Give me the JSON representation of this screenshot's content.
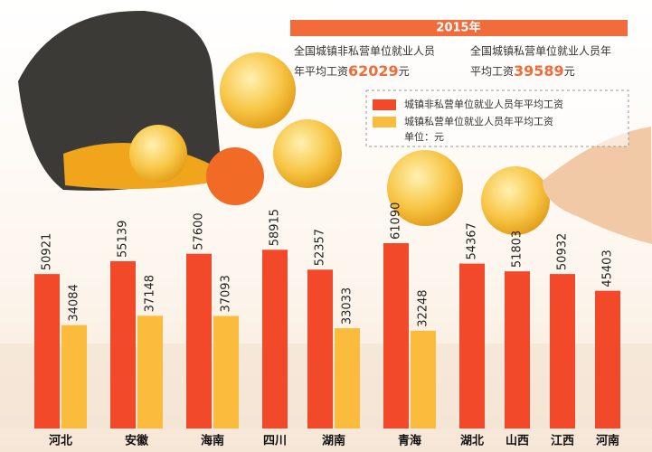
{
  "chart_data": {
    "type": "bar",
    "title": "2015年",
    "summary": [
      {
        "line1": "全国城镇非私营单位就业人员",
        "line2": "年平均工资",
        "value": 62029,
        "unit": "元"
      },
      {
        "line1": "全国城镇私营单位就业人员年",
        "line2": "平均工资",
        "value": 39589,
        "unit": "元"
      }
    ],
    "unit_label": "单位：元",
    "categories": [
      "河北",
      "安徽",
      "海南",
      "四川",
      "湖南",
      "青海",
      "湖北",
      "山西",
      "江西",
      "河南"
    ],
    "series": [
      {
        "name": "城镇非私营单位就业人员年平均工资",
        "color": "#f2492b",
        "values": [
          50921,
          55139,
          57600,
          58915,
          52357,
          61090,
          54367,
          51803,
          50932,
          45403
        ]
      },
      {
        "name": "城镇私营单位就业人员年平均工资",
        "color": "#fbbb3d",
        "values": [
          34084,
          37148,
          37093,
          null,
          33033,
          32248,
          null,
          null,
          null,
          null
        ]
      }
    ]
  }
}
